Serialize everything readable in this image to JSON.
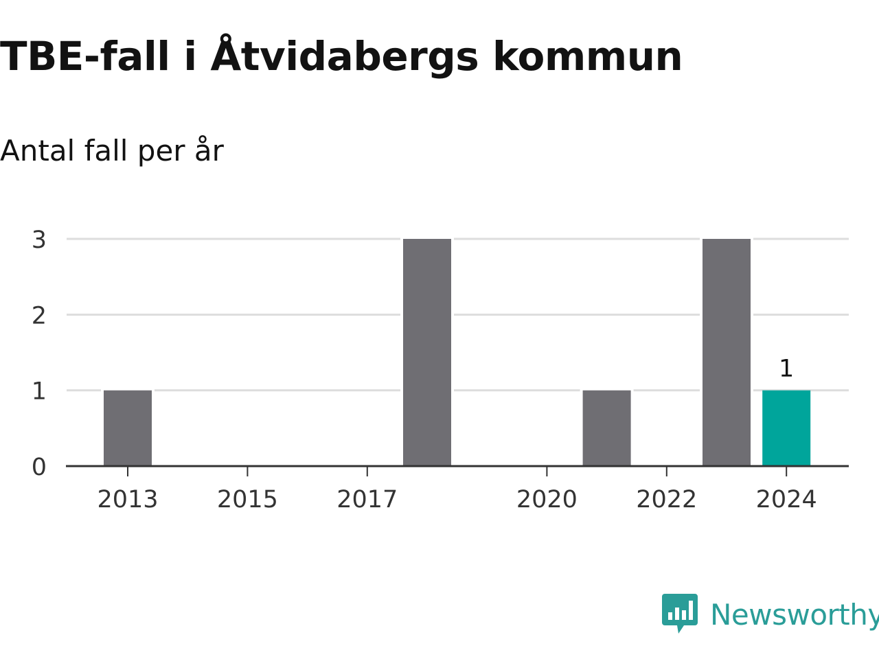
{
  "chart_data": {
    "type": "bar",
    "title": "TBE-fall i Åtvidabergs kommun",
    "subtitle": "Antal fall per år",
    "x": [
      2013,
      2014,
      2015,
      2016,
      2017,
      2018,
      2019,
      2020,
      2021,
      2022,
      2023,
      2024
    ],
    "values": [
      1,
      0,
      0,
      0,
      0,
      3,
      0,
      0,
      1,
      0,
      3,
      1
    ],
    "x_tick_labels": [
      "2013",
      "2015",
      "2017",
      "2020",
      "2022",
      "2024"
    ],
    "y_ticks": [
      0,
      1,
      2,
      3
    ],
    "ylim": [
      0,
      3
    ],
    "grid": true,
    "highlight": {
      "x": 2024,
      "label": "1"
    },
    "colors": {
      "bar": "#6f6e73",
      "highlight": "#00a59b",
      "grid": "#dddddd",
      "axis": "#333333"
    }
  },
  "branding": {
    "logo_text": "Newsworthy",
    "logo_icon": "bar-chart-speech-bubble-icon",
    "color": "#2a9d98"
  }
}
